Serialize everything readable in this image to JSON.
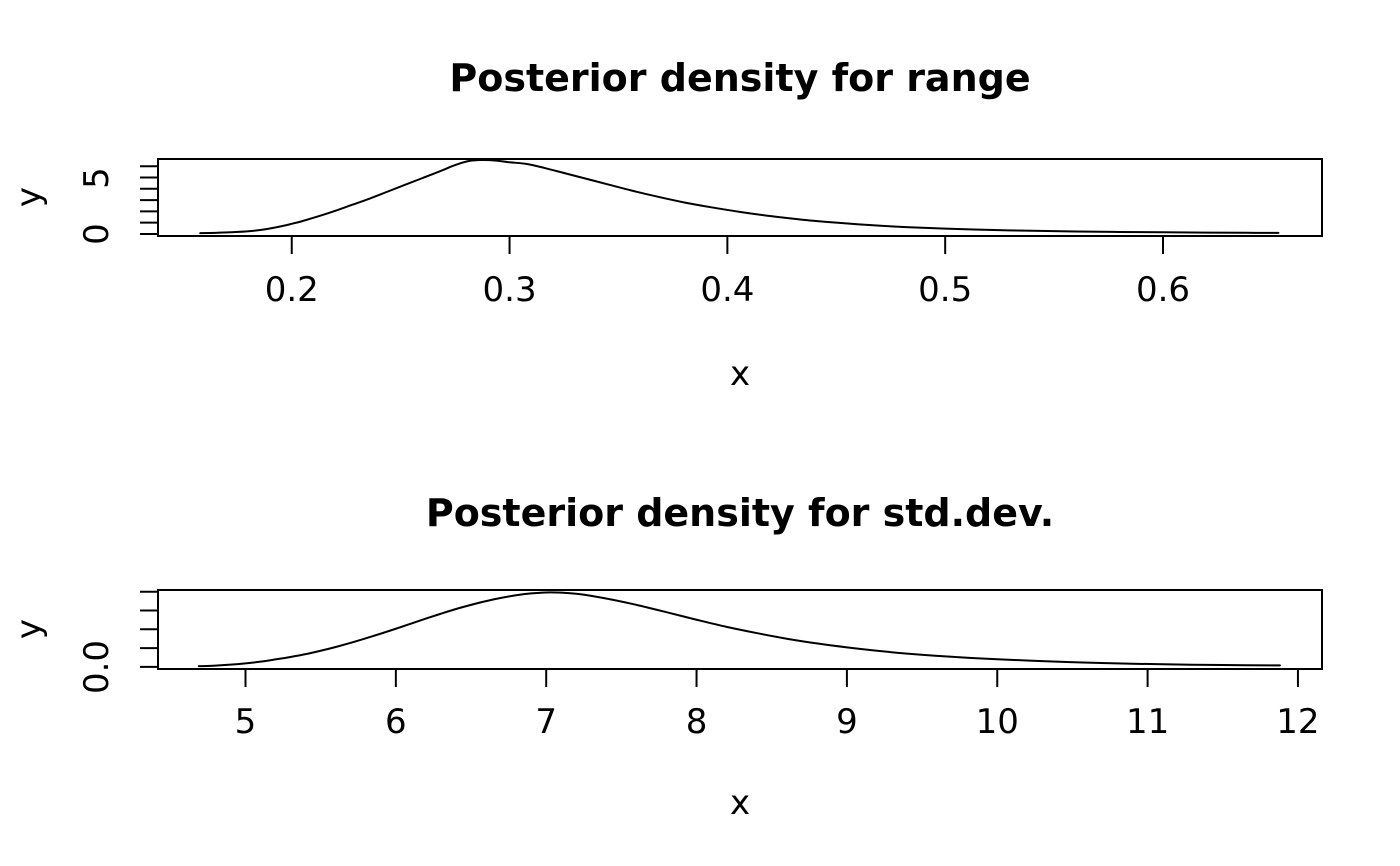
{
  "figure": {
    "background_color": "#ffffff",
    "line_color": "#000000",
    "text_color": "#000000"
  },
  "chart_data": [
    {
      "type": "line",
      "title": "Posterior density for range",
      "xlabel": "x",
      "ylabel": "y",
      "xlim": [
        0.1386,
        0.673
      ],
      "ylim": [
        -0.18,
        6.64
      ],
      "grid": false,
      "legend": null,
      "x_ticks": {
        "values": [
          0.2,
          0.3,
          0.4,
          0.5,
          0.6
        ],
        "labels": [
          "0.2",
          "0.3",
          "0.4",
          "0.5",
          "0.6"
        ]
      },
      "y_ticks": {
        "values": [
          0,
          1,
          2,
          3,
          4,
          5,
          6
        ],
        "labels": [
          "0",
          "",
          "",
          "",
          "",
          "5",
          ""
        ]
      },
      "points": [
        [
          0.158,
          0.07
        ],
        [
          0.165,
          0.1
        ],
        [
          0.172,
          0.15
        ],
        [
          0.18,
          0.24
        ],
        [
          0.188,
          0.42
        ],
        [
          0.196,
          0.72
        ],
        [
          0.2,
          0.9
        ],
        [
          0.205,
          1.15
        ],
        [
          0.212,
          1.55
        ],
        [
          0.22,
          2.05
        ],
        [
          0.228,
          2.6
        ],
        [
          0.236,
          3.15
        ],
        [
          0.244,
          3.75
        ],
        [
          0.252,
          4.35
        ],
        [
          0.26,
          4.95
        ],
        [
          0.268,
          5.55
        ],
        [
          0.275,
          6.1
        ],
        [
          0.281,
          6.45
        ],
        [
          0.287,
          6.55
        ],
        [
          0.294,
          6.5
        ],
        [
          0.3,
          6.35
        ],
        [
          0.308,
          6.2
        ],
        [
          0.316,
          5.85
        ],
        [
          0.325,
          5.4
        ],
        [
          0.335,
          4.9
        ],
        [
          0.345,
          4.4
        ],
        [
          0.356,
          3.85
        ],
        [
          0.368,
          3.3
        ],
        [
          0.38,
          2.8
        ],
        [
          0.393,
          2.35
        ],
        [
          0.406,
          1.95
        ],
        [
          0.42,
          1.58
        ],
        [
          0.435,
          1.25
        ],
        [
          0.45,
          1.0
        ],
        [
          0.466,
          0.78
        ],
        [
          0.482,
          0.61
        ],
        [
          0.5,
          0.47
        ],
        [
          0.52,
          0.36
        ],
        [
          0.54,
          0.28
        ],
        [
          0.56,
          0.22
        ],
        [
          0.58,
          0.18
        ],
        [
          0.6,
          0.15
        ],
        [
          0.62,
          0.12
        ],
        [
          0.638,
          0.105
        ],
        [
          0.653,
          0.095
        ]
      ]
    },
    {
      "type": "line",
      "title": "Posterior density for std.dev.",
      "xlabel": "x",
      "ylabel": "y",
      "xlim": [
        4.418,
        12.16
      ],
      "ylim": [
        -0.011,
        0.409
      ],
      "grid": false,
      "legend": null,
      "x_ticks": {
        "values": [
          5,
          6,
          7,
          8,
          9,
          10,
          11,
          12
        ],
        "labels": [
          "5",
          "6",
          "7",
          "8",
          "9",
          "10",
          "11",
          "12"
        ]
      },
      "y_ticks": {
        "values": [
          0,
          0.1,
          0.2,
          0.3,
          0.4
        ],
        "labels": [
          "0.0",
          "",
          "",
          "",
          ""
        ]
      },
      "points": [
        [
          4.69,
          0.004
        ],
        [
          4.8,
          0.007
        ],
        [
          4.9,
          0.012
        ],
        [
          5.0,
          0.019
        ],
        [
          5.1,
          0.028
        ],
        [
          5.2,
          0.04
        ],
        [
          5.3,
          0.053
        ],
        [
          5.4,
          0.068
        ],
        [
          5.5,
          0.086
        ],
        [
          5.6,
          0.106
        ],
        [
          5.7,
          0.128
        ],
        [
          5.8,
          0.152
        ],
        [
          5.9,
          0.177
        ],
        [
          6.0,
          0.203
        ],
        [
          6.1,
          0.23
        ],
        [
          6.2,
          0.257
        ],
        [
          6.3,
          0.283
        ],
        [
          6.4,
          0.308
        ],
        [
          6.5,
          0.33
        ],
        [
          6.6,
          0.35
        ],
        [
          6.7,
          0.367
        ],
        [
          6.8,
          0.381
        ],
        [
          6.9,
          0.391
        ],
        [
          7.0,
          0.396
        ],
        [
          7.1,
          0.395
        ],
        [
          7.2,
          0.389
        ],
        [
          7.3,
          0.378
        ],
        [
          7.45,
          0.356
        ],
        [
          7.6,
          0.33
        ],
        [
          7.8,
          0.291
        ],
        [
          8.0,
          0.251
        ],
        [
          8.2,
          0.213
        ],
        [
          8.4,
          0.18
        ],
        [
          8.6,
          0.15
        ],
        [
          8.8,
          0.125
        ],
        [
          9.0,
          0.104
        ],
        [
          9.2,
          0.086
        ],
        [
          9.4,
          0.071
        ],
        [
          9.6,
          0.059
        ],
        [
          9.8,
          0.049
        ],
        [
          10.0,
          0.041
        ],
        [
          10.3,
          0.031
        ],
        [
          10.6,
          0.023
        ],
        [
          10.9,
          0.017
        ],
        [
          11.2,
          0.013
        ],
        [
          11.5,
          0.01
        ],
        [
          11.88,
          0.008
        ]
      ]
    }
  ]
}
